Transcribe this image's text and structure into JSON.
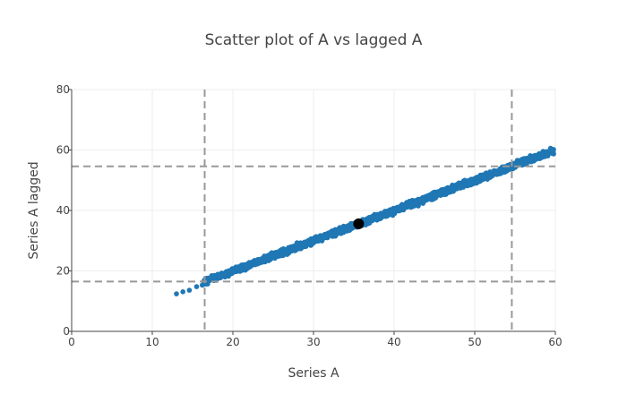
{
  "chart_data": {
    "type": "scatter",
    "title": "Scatter plot of A vs lagged A",
    "xlabel": "Series A",
    "ylabel": "Series A lagged",
    "xlim": [
      0,
      60
    ],
    "ylim": [
      0,
      80
    ],
    "x_ticks": [
      0,
      10,
      20,
      30,
      40,
      50,
      60
    ],
    "y_ticks": [
      0,
      20,
      40,
      60,
      80
    ],
    "grid": true,
    "legend": "none",
    "series": [
      {
        "color": "#1f77b4",
        "trend": {
          "slope": 1.0,
          "intercept": 0.0,
          "noise": 0.9
        },
        "x_range": [
          13,
          59.8
        ],
        "density": "dense band"
      }
    ],
    "highlight_point": {
      "x": 35.6,
      "y": 35.6,
      "color": "#000000"
    },
    "reference_lines": {
      "style": "dashed",
      "color": "#999999",
      "vertical_x": [
        16.5,
        54.6
      ],
      "horizontal_y": [
        16.5,
        54.6
      ]
    }
  }
}
